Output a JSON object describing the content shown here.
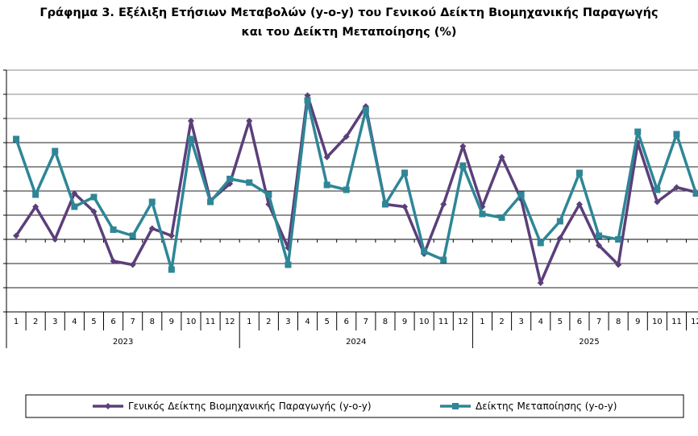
{
  "chart_data": {
    "type": "line",
    "title_line1": "Γράφημα 3. Εξέλιξη Ετήσιων Μεταβολών (y-o-y) του Γενικού Δείκτη Βιομηχανικής Παραγωγής",
    "title_line2": "και του Δείκτη Μεταποίησης (%)",
    "xlabel": "",
    "ylabel": "",
    "ylim": [
      -6,
      14
    ],
    "grid": true,
    "legend_position": "bottom",
    "years": [
      "2023",
      "2024",
      "2025"
    ],
    "months": [
      "1",
      "2",
      "3",
      "4",
      "5",
      "6",
      "7",
      "8",
      "9",
      "10",
      "11",
      "12"
    ],
    "series": [
      {
        "name": "Γενικός Δείκτης Βιομηχανικής Παραγωγής (y-o-y)",
        "color": "#5b3f7a",
        "marker": "diamond",
        "values": [
          0.3,
          2.7,
          0,
          3.8,
          2.3,
          -1.8,
          -2.1,
          0.9,
          0.3,
          9.8,
          3.2,
          4.6,
          9.8,
          2.9,
          -0.7,
          11.9,
          6.8,
          8.5,
          11.0,
          2.9,
          2.7,
          -1.2,
          2.9,
          7.7,
          2.7,
          6.8,
          3.3,
          -3.6,
          0.1,
          2.9,
          -0.5,
          -2.1,
          8.0,
          3.1,
          4.3,
          3.9
        ]
      },
      {
        "name": "Δείκτης Μεταποίησης (y-o-y)",
        "color": "#2e8696",
        "marker": "square",
        "values": [
          8.3,
          3.7,
          7.3,
          2.7,
          3.5,
          0.8,
          0.3,
          3.1,
          -2.5,
          8.3,
          3.1,
          5.0,
          4.7,
          3.7,
          -2.1,
          11.5,
          4.5,
          4.1,
          10.7,
          2.9,
          5.5,
          -1.0,
          -1.7,
          6.1,
          2.1,
          1.8,
          3.7,
          -0.3,
          1.5,
          5.5,
          0.3,
          0,
          8.9,
          4.1,
          8.7,
          3.8
        ]
      }
    ]
  }
}
